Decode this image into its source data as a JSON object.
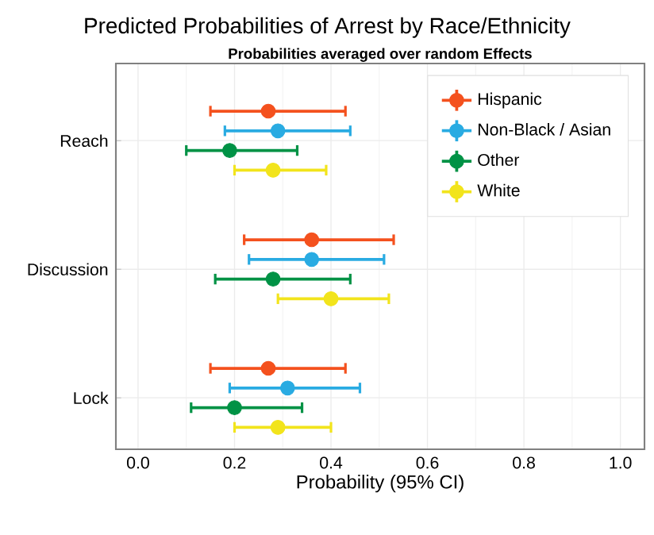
{
  "chart_data": {
    "type": "scatter",
    "orientation": "horizontal",
    "title": "Predicted Probabilities of Arrest by Race/Ethnicity",
    "subtitle": "Probabilities averaged over random Effects",
    "xlabel": "Probability (95% CI)",
    "categories": [
      "Reach",
      "Discussion",
      "Lock"
    ],
    "series": [
      {
        "name": "Hispanic",
        "color": "#f4511e",
        "values": [
          0.27,
          0.36,
          0.27
        ],
        "errors": [
          [
            0.15,
            0.43
          ],
          [
            0.22,
            0.53
          ],
          [
            0.15,
            0.43
          ]
        ]
      },
      {
        "name": "Non-Black / Asian",
        "color": "#29abe2",
        "values": [
          0.29,
          0.36,
          0.31
        ],
        "errors": [
          [
            0.18,
            0.44
          ],
          [
            0.23,
            0.51
          ],
          [
            0.19,
            0.46
          ]
        ]
      },
      {
        "name": "Other",
        "color": "#009245",
        "values": [
          0.19,
          0.28,
          0.2
        ],
        "errors": [
          [
            0.1,
            0.33
          ],
          [
            0.16,
            0.44
          ],
          [
            0.11,
            0.34
          ]
        ]
      },
      {
        "name": "White",
        "color": "#f2e41c",
        "values": [
          0.28,
          0.4,
          0.29
        ],
        "errors": [
          [
            0.2,
            0.39
          ],
          [
            0.29,
            0.52
          ],
          [
            0.2,
            0.4
          ]
        ]
      }
    ],
    "xlim": [
      -0.046,
      1.05
    ],
    "xticks": [
      {
        "value": 0,
        "label": "0.0"
      },
      0.2,
      0.4,
      0.6,
      0.8,
      {
        "value": 1,
        "label": "1.0"
      }
    ],
    "grid": true,
    "legend": "top right",
    "marker": "circle"
  }
}
